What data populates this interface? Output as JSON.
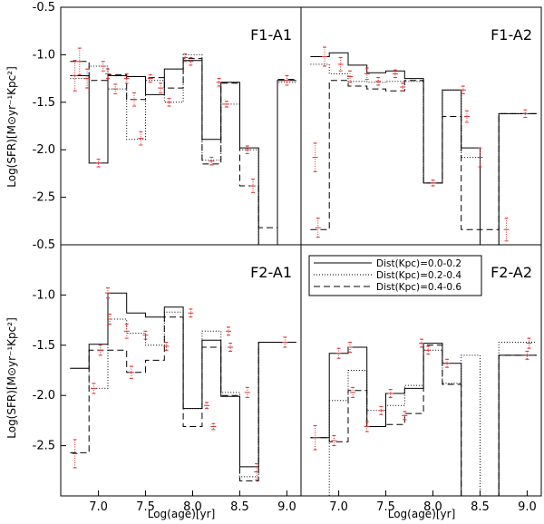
{
  "figure": {
    "ylabel": "Log(SFR)[M⊙yr⁻¹Kpc²]",
    "xlabel": "Log(age)[yr]"
  },
  "legend": {
    "entries": [
      {
        "label": "Dist(Kpc)=0.0-0.2",
        "style": "solid"
      },
      {
        "label": "Dist(Kpc)=0.2-0.4",
        "style": "dotted"
      },
      {
        "label": "Dist(Kpc)=0.4-0.6",
        "style": "dashed"
      }
    ]
  },
  "chart_data": [
    {
      "type": "line",
      "title": "F1-A1",
      "xlabel": "",
      "ylabel": "Log(SFR)[M⊙yr⁻¹Kpc²]",
      "xlim": [
        6.6,
        9.15
      ],
      "ylim": [
        -3.0,
        -0.5
      ],
      "xticks": [],
      "yticks": [
        -2.5,
        -2.0,
        -1.5,
        -1.0,
        -0.5
      ],
      "bin_edges": [
        6.7,
        6.9,
        7.1,
        7.3,
        7.5,
        7.7,
        7.9,
        8.1,
        8.3,
        8.5,
        8.7,
        8.9,
        9.1
      ],
      "series": [
        {
          "style": "solid",
          "values": [
            -1.22,
            -2.14,
            -1.22,
            -1.23,
            -1.42,
            -1.15,
            -1.06,
            -1.89,
            -1.29,
            -1.98,
            -3.0,
            -1.27
          ]
        },
        {
          "style": "dotted",
          "values": [
            -1.25,
            -1.12,
            -1.36,
            -1.89,
            -1.27,
            -1.5,
            -1.0,
            -2.11,
            -1.52,
            -2.0,
            -3.0,
            -1.29
          ]
        },
        {
          "style": "dashed",
          "values": [
            -1.07,
            -1.27,
            -1.21,
            -1.47,
            -1.24,
            -1.35,
            -1.04,
            -2.15,
            -1.3,
            -2.38,
            -2.82,
            -1.26
          ]
        }
      ],
      "errors": [
        {
          "x": 6.75,
          "y": -1.22,
          "e": 0.16
        },
        {
          "x": 6.8,
          "y": -1.07,
          "e": 0.14
        },
        {
          "x": 6.88,
          "y": -1.25,
          "e": 0.1
        },
        {
          "x": 7.0,
          "y": -2.14,
          "e": 0.04
        },
        {
          "x": 7.05,
          "y": -1.12,
          "e": 0.05
        },
        {
          "x": 7.1,
          "y": -1.2,
          "e": 0.05
        },
        {
          "x": 7.18,
          "y": -1.36,
          "e": 0.05
        },
        {
          "x": 7.3,
          "y": -1.25,
          "e": 0.05
        },
        {
          "x": 7.38,
          "y": -1.47,
          "e": 0.07
        },
        {
          "x": 7.45,
          "y": -1.88,
          "e": 0.07
        },
        {
          "x": 7.55,
          "y": -1.25,
          "e": 0.04
        },
        {
          "x": 7.66,
          "y": -1.35,
          "e": 0.05
        },
        {
          "x": 7.75,
          "y": -1.5,
          "e": 0.04
        },
        {
          "x": 7.92,
          "y": -1.03,
          "e": 0.04
        },
        {
          "x": 7.98,
          "y": -1.07,
          "e": 0.04
        },
        {
          "x": 8.2,
          "y": -2.12,
          "e": 0.04
        },
        {
          "x": 8.28,
          "y": -1.29,
          "e": 0.04
        },
        {
          "x": 8.36,
          "y": -1.52,
          "e": 0.03
        },
        {
          "x": 8.58,
          "y": -2.0,
          "e": 0.04
        },
        {
          "x": 8.64,
          "y": -2.38,
          "e": 0.07
        },
        {
          "x": 9.0,
          "y": -1.27,
          "e": 0.05
        }
      ]
    },
    {
      "type": "line",
      "title": "F1-A2",
      "xlabel": "",
      "ylabel": "",
      "xlim": [
        6.6,
        9.15
      ],
      "ylim": [
        -3.0,
        -0.5
      ],
      "xticks": [],
      "yticks": [],
      "bin_edges": [
        6.7,
        6.9,
        7.1,
        7.3,
        7.5,
        7.7,
        7.9,
        8.1,
        8.3,
        8.5,
        8.7,
        8.9,
        9.1
      ],
      "series": [
        {
          "style": "solid",
          "values": [
            -1.02,
            -0.98,
            -1.11,
            -1.19,
            -1.17,
            -1.25,
            -2.35,
            -1.37,
            -1.98,
            -3.0,
            -1.62,
            -1.62
          ]
        },
        {
          "style": "dotted",
          "values": [
            -1.1,
            -1.2,
            -1.28,
            -1.29,
            -1.28,
            -1.28,
            -2.35,
            -1.37,
            -2.08,
            -3.0,
            -1.62,
            -1.62
          ]
        },
        {
          "style": "dashed",
          "values": [
            -2.84,
            -1.27,
            -1.33,
            -1.36,
            -1.38,
            -1.27,
            -2.35,
            -1.65,
            -2.84,
            -2.84,
            -1.62,
            -1.62
          ]
        }
      ],
      "errors": [
        {
          "x": 6.75,
          "y": -2.08,
          "e": 0.15
        },
        {
          "x": 6.78,
          "y": -2.82,
          "e": 0.1
        },
        {
          "x": 6.85,
          "y": -1.02,
          "e": 0.1
        },
        {
          "x": 7.02,
          "y": -1.1,
          "e": 0.07
        },
        {
          "x": 7.12,
          "y": -1.23,
          "e": 0.06
        },
        {
          "x": 7.3,
          "y": -1.2,
          "e": 0.06
        },
        {
          "x": 7.42,
          "y": -1.28,
          "e": 0.04
        },
        {
          "x": 7.6,
          "y": -1.2,
          "e": 0.04
        },
        {
          "x": 7.68,
          "y": -1.34,
          "e": 0.04
        },
        {
          "x": 8.0,
          "y": -2.35,
          "e": 0.03
        },
        {
          "x": 8.32,
          "y": -1.37,
          "e": 0.04
        },
        {
          "x": 8.36,
          "y": -1.65,
          "e": 0.06
        },
        {
          "x": 8.5,
          "y": -2.08,
          "e": 0.1
        },
        {
          "x": 8.78,
          "y": -2.84,
          "e": 0.12
        },
        {
          "x": 8.98,
          "y": -1.62,
          "e": 0.04
        }
      ]
    },
    {
      "type": "line",
      "title": "F2-A1",
      "xlabel": "Log(age)[yr]",
      "ylabel": "Log(SFR)[M⊙yr⁻¹Kpc²]",
      "xlim": [
        6.6,
        9.15
      ],
      "ylim": [
        -3.0,
        -0.5
      ],
      "xticks": [
        7.0,
        7.5,
        8.0,
        8.5,
        9.0
      ],
      "yticks": [
        -2.5,
        -2.0,
        -1.5,
        -1.0,
        -0.5
      ],
      "bin_edges": [
        6.7,
        6.9,
        7.1,
        7.3,
        7.5,
        7.7,
        7.9,
        8.1,
        8.3,
        8.5,
        8.7,
        8.9,
        9.1
      ],
      "series": [
        {
          "style": "solid",
          "values": [
            -1.73,
            -1.49,
            -0.98,
            -1.18,
            -1.22,
            -1.12,
            -2.13,
            -1.45,
            -2.01,
            -2.71,
            -1.47,
            -1.47
          ]
        },
        {
          "style": "dotted",
          "values": [
            -1.73,
            -1.93,
            -1.24,
            -1.38,
            -1.5,
            -1.17,
            -2.13,
            -1.36,
            -1.97,
            -2.81,
            -1.47,
            -1.47
          ]
        },
        {
          "style": "dashed",
          "values": [
            -2.57,
            -1.55,
            -1.55,
            -1.77,
            -1.65,
            -1.22,
            -2.31,
            -1.52,
            -2.0,
            -2.85,
            -1.47,
            -1.47
          ]
        }
      ],
      "errors": [
        {
          "x": 6.75,
          "y": -2.58,
          "e": 0.14
        },
        {
          "x": 6.95,
          "y": -1.93,
          "e": 0.05
        },
        {
          "x": 7.02,
          "y": -1.55,
          "e": 0.05
        },
        {
          "x": 7.1,
          "y": -0.98,
          "e": 0.05
        },
        {
          "x": 7.12,
          "y": -1.24,
          "e": 0.05
        },
        {
          "x": 7.3,
          "y": -1.36,
          "e": 0.07
        },
        {
          "x": 7.35,
          "y": -1.77,
          "e": 0.06
        },
        {
          "x": 7.5,
          "y": -1.4,
          "e": 0.04
        },
        {
          "x": 7.72,
          "y": -1.51,
          "e": 0.04
        },
        {
          "x": 7.98,
          "y": -1.18,
          "e": 0.04
        },
        {
          "x": 8.15,
          "y": -2.1,
          "e": 0.03
        },
        {
          "x": 8.22,
          "y": -2.31,
          "e": 0.03
        },
        {
          "x": 8.38,
          "y": -1.36,
          "e": 0.04
        },
        {
          "x": 8.4,
          "y": -1.52,
          "e": 0.04
        },
        {
          "x": 8.58,
          "y": -1.97,
          "e": 0.05
        },
        {
          "x": 8.68,
          "y": -2.76,
          "e": 0.08
        },
        {
          "x": 8.98,
          "y": -1.47,
          "e": 0.05
        }
      ]
    },
    {
      "type": "line",
      "title": "F2-A2",
      "xlabel": "Log(age)[yr]",
      "ylabel": "",
      "xlim": [
        6.6,
        9.15
      ],
      "ylim": [
        -3.0,
        -0.5
      ],
      "xticks": [
        7.0,
        7.5,
        8.0,
        8.5,
        9.0
      ],
      "yticks": [],
      "bin_edges": [
        6.7,
        6.9,
        7.1,
        7.3,
        7.5,
        7.7,
        7.9,
        8.1,
        8.3,
        8.5,
        8.7,
        8.9,
        9.1
      ],
      "series": [
        {
          "style": "solid",
          "values": [
            -2.42,
            -1.58,
            -1.52,
            -2.31,
            -1.98,
            -1.93,
            -1.48,
            -1.68,
            -3.0,
            -3.0,
            -1.6,
            -1.6
          ]
        },
        {
          "style": "dotted",
          "values": [
            -3.0,
            -2.05,
            -1.75,
            -2.15,
            -2.1,
            -1.9,
            -1.55,
            -1.88,
            -1.6,
            -3.0,
            -1.47,
            -1.47
          ]
        },
        {
          "style": "dashed",
          "values": [
            -2.42,
            -2.46,
            -1.95,
            -2.31,
            -2.29,
            -2.18,
            -1.5,
            -1.89,
            -3.0,
            -3.0,
            -1.6,
            -1.6
          ]
        }
      ],
      "errors": [
        {
          "x": 6.75,
          "y": -2.42,
          "e": 0.12
        },
        {
          "x": 6.95,
          "y": -2.45,
          "e": 0.05
        },
        {
          "x": 7.0,
          "y": -1.58,
          "e": 0.05
        },
        {
          "x": 7.12,
          "y": -1.52,
          "e": 0.05
        },
        {
          "x": 7.15,
          "y": -1.97,
          "e": 0.05
        },
        {
          "x": 7.3,
          "y": -2.31,
          "e": 0.05
        },
        {
          "x": 7.45,
          "y": -2.15,
          "e": 0.04
        },
        {
          "x": 7.55,
          "y": -1.98,
          "e": 0.04
        },
        {
          "x": 7.7,
          "y": -2.2,
          "e": 0.04
        },
        {
          "x": 7.88,
          "y": -1.48,
          "e": 0.04
        },
        {
          "x": 7.95,
          "y": -1.55,
          "e": 0.04
        },
        {
          "x": 8.15,
          "y": -1.68,
          "e": 0.04
        },
        {
          "x": 9.02,
          "y": -1.48,
          "e": 0.05
        },
        {
          "x": 9.0,
          "y": -1.6,
          "e": 0.04
        }
      ]
    }
  ]
}
